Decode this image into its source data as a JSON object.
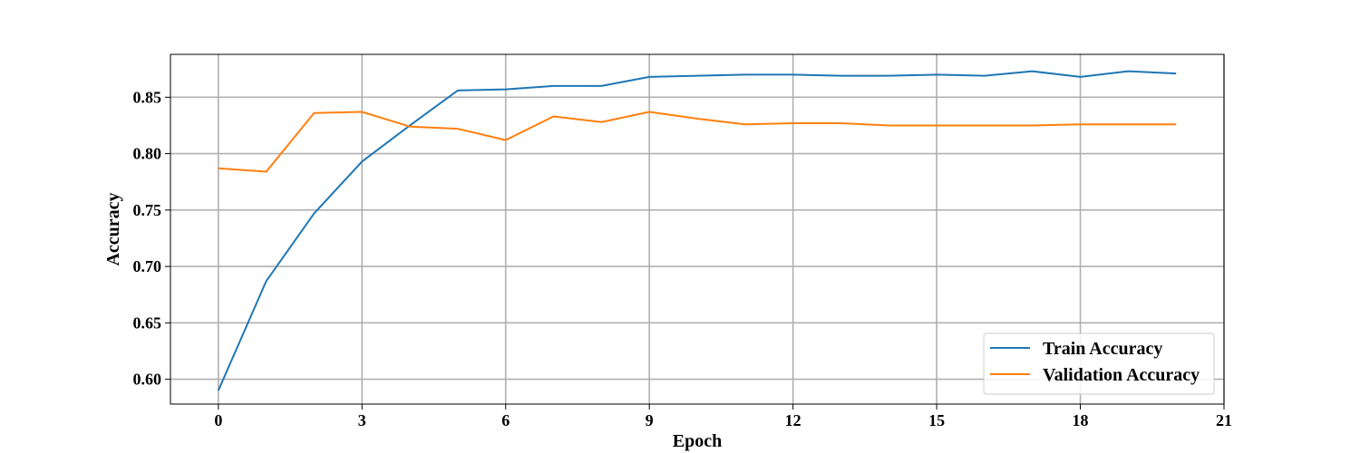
{
  "colors": {
    "train": "#1f77b4",
    "validation": "#ff7f0e",
    "grid": "#b0b0b0",
    "axis": "#000000"
  },
  "chart_data": {
    "type": "line",
    "title": "",
    "xlabel": "Epoch",
    "ylabel": "Accuracy",
    "xlim": [
      -1,
      21
    ],
    "ylim": [
      0.578,
      0.888
    ],
    "xticks": [
      0,
      3,
      6,
      9,
      12,
      15,
      18,
      21
    ],
    "xtick_labels": [
      "0",
      "3",
      "6",
      "9",
      "12",
      "15",
      "18",
      "21"
    ],
    "yticks": [
      0.6,
      0.65,
      0.7,
      0.75,
      0.8,
      0.85
    ],
    "ytick_labels": [
      "0.60",
      "0.65",
      "0.70",
      "0.75",
      "0.80",
      "0.85"
    ],
    "grid": true,
    "legend_position": "bottom-right",
    "x": [
      0,
      1,
      2,
      3,
      4,
      5,
      6,
      7,
      8,
      9,
      10,
      11,
      12,
      13,
      14,
      15,
      16,
      17,
      18,
      19,
      20
    ],
    "series": [
      {
        "name": "Train Accuracy",
        "color": "#1f77b4",
        "values": [
          0.59,
          0.687,
          0.747,
          0.793,
          0.825,
          0.856,
          0.857,
          0.86,
          0.86,
          0.868,
          0.869,
          0.87,
          0.87,
          0.869,
          0.869,
          0.87,
          0.869,
          0.873,
          0.868,
          0.873,
          0.871
        ]
      },
      {
        "name": "Validation Accuracy",
        "color": "#ff7f0e",
        "values": [
          0.787,
          0.784,
          0.836,
          0.837,
          0.824,
          0.822,
          0.812,
          0.833,
          0.828,
          0.837,
          0.831,
          0.826,
          0.827,
          0.827,
          0.825,
          0.825,
          0.825,
          0.825,
          0.826,
          0.826,
          0.826
        ]
      }
    ]
  }
}
